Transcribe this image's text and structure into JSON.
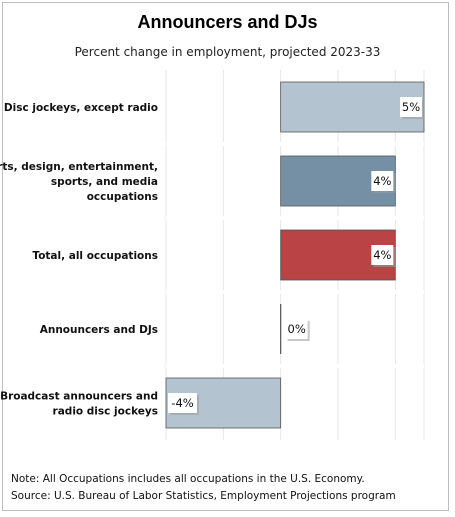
{
  "chart_data": {
    "type": "bar",
    "orientation": "horizontal",
    "title": "Announcers and DJs",
    "subtitle": "Percent change in employment, projected 2023-33",
    "categories": [
      "Disc jockeys, except radio",
      "Arts, design, entertainment, sports, and media occupations",
      "Total, all occupations",
      "Announcers and DJs",
      "Broadcast announcers and radio disc jockeys"
    ],
    "category_lines": [
      [
        "Disc jockeys, except radio"
      ],
      [
        "Arts, design, entertainment,",
        "sports, and media",
        "occupations"
      ],
      [
        "Total, all occupations"
      ],
      [
        "Announcers and DJs"
      ],
      [
        "Broadcast announcers and",
        "radio disc jockeys"
      ]
    ],
    "values": [
      5,
      4,
      4,
      0,
      -4
    ],
    "data_labels": [
      "5%",
      "4%",
      "4%",
      "0%",
      "-4%"
    ],
    "bar_colors": [
      "#b3c4d0",
      "#7590a5",
      "#b94345",
      "#b3c4d0",
      "#b3c4d0"
    ],
    "xlim": [
      -4,
      5
    ],
    "grid": true,
    "legend": "none"
  },
  "notes": {
    "note": "Note: All Occupations includes all occupations in the U.S. Economy.",
    "source": "Source: U.S. Bureau of Labor Statistics, Employment Projections program"
  }
}
